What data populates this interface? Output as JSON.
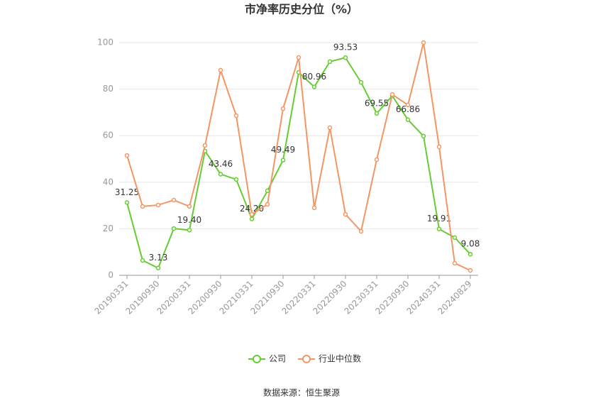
{
  "chart_data": {
    "type": "line",
    "title": "市净率历史分位（%）",
    "source": "数据来源：恒生聚源",
    "categories": [
      "20190331",
      null,
      "20190930",
      null,
      "20200331",
      null,
      "20200930",
      null,
      "20210331",
      null,
      "20210930",
      null,
      "20220331",
      null,
      "20220930",
      null,
      "20230331",
      null,
      "20230930",
      null,
      "20240331",
      null,
      "20240829"
    ],
    "series": [
      {
        "name": "公司",
        "color": "#66cc33",
        "values": [
          31.25,
          6.4,
          3.13,
          20.1,
          19.4,
          53.4,
          43.46,
          41.2,
          24.2,
          36.3,
          49.49,
          87.2,
          80.96,
          91.8,
          93.53,
          82.9,
          69.55,
          77.1,
          66.86,
          59.8,
          19.91,
          16.2,
          9.08
        ],
        "value_labels": [
          "31.25",
          null,
          "3.13",
          null,
          "19.40",
          null,
          "43.46",
          null,
          "24.20",
          null,
          "49.49",
          null,
          "80.96",
          null,
          "93.53",
          null,
          "69.55",
          null,
          "66.86",
          null,
          "19.91",
          null,
          "9.08"
        ]
      },
      {
        "name": "行业中位数",
        "color": "#f39664",
        "values": [
          51.5,
          29.6,
          30.2,
          32.3,
          29.6,
          55.8,
          88.1,
          68.6,
          26.2,
          30.5,
          71.6,
          93.6,
          29.0,
          63.4,
          26.2,
          18.9,
          49.7,
          77.7,
          73.2,
          100,
          55.2,
          5.2,
          2.1
        ]
      }
    ],
    "ylim": [
      0,
      100
    ],
    "yticks": [
      0,
      20,
      40,
      60,
      80,
      100
    ],
    "grid": true,
    "legend": "bottom"
  }
}
